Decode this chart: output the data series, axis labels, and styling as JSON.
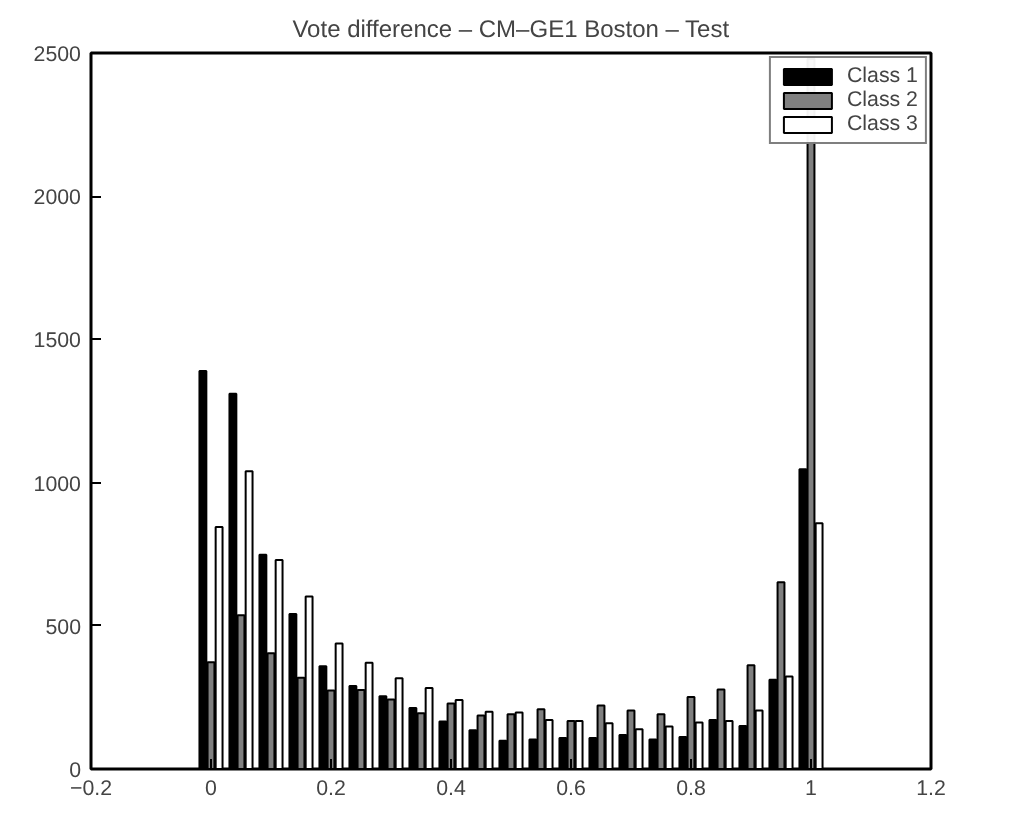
{
  "chart_data": {
    "type": "bar",
    "title": "Vote difference – CM–GE1 Boston – Test",
    "x": [
      0,
      0.05,
      0.1,
      0.15,
      0.2,
      0.25,
      0.3,
      0.35,
      0.4,
      0.45,
      0.5,
      0.55,
      0.6,
      0.65,
      0.7,
      0.75,
      0.8,
      0.85,
      0.9,
      0.95,
      1.0
    ],
    "series": [
      {
        "name": "Class 1",
        "color": "#000000",
        "values": [
          1390,
          1310,
          748,
          541,
          359,
          290,
          254,
          213,
          166,
          135,
          99,
          103,
          108,
          108,
          119,
          103,
          112,
          171,
          150,
          312,
          1047
        ]
      },
      {
        "name": "Class 2",
        "color": "#808080",
        "values": [
          373,
          537,
          404,
          319,
          274,
          276,
          243,
          195,
          229,
          187,
          191,
          209,
          168,
          222,
          204,
          191,
          251,
          278,
          362,
          652,
          2480
        ]
      },
      {
        "name": "Class 3",
        "color": "#ffffff",
        "values": [
          845,
          1040,
          730,
          602,
          438,
          371,
          317,
          283,
          241,
          200,
          197,
          171,
          168,
          160,
          139,
          148,
          162,
          168,
          204,
          323,
          858
        ]
      }
    ],
    "xlim": [
      -0.2,
      1.2
    ],
    "xticks": [
      {
        "value": -0.2,
        "label": "−0.2"
      },
      0,
      0.2,
      0.4,
      0.6,
      0.8,
      1,
      1.2
    ],
    "ylim": [
      0,
      2500
    ],
    "yticks": [
      0,
      500,
      1000,
      1500,
      2000,
      2500
    ],
    "grid": false,
    "legend": "top right"
  }
}
